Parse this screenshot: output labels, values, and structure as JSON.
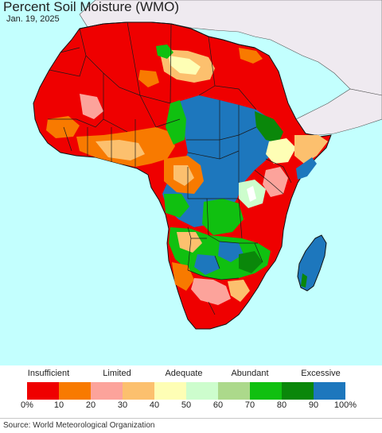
{
  "header": {
    "title": "Percent Soil Moisture (WMO)",
    "date": "Jan. 19, 2025"
  },
  "map": {
    "region": "Africa",
    "ocean_color": "#c3fffe",
    "land_outside_color": "#efeaf0",
    "border_color": "#1a1a1a"
  },
  "legend": {
    "categories": [
      "Insufficient",
      "Limited",
      "Adequate",
      "Abundant",
      "Excessive"
    ],
    "ticks": [
      "0%",
      "10",
      "20",
      "30",
      "40",
      "50",
      "60",
      "70",
      "80",
      "90",
      "100%"
    ],
    "colors": [
      "#ef0000",
      "#f87a00",
      "#fca39b",
      "#fcc06e",
      "#fefeb5",
      "#cdfdcd",
      "#acd98b",
      "#10c010",
      "#0a870a",
      "#1d77bd"
    ]
  },
  "footer": {
    "source": "Source: World Meteorological Organization"
  }
}
